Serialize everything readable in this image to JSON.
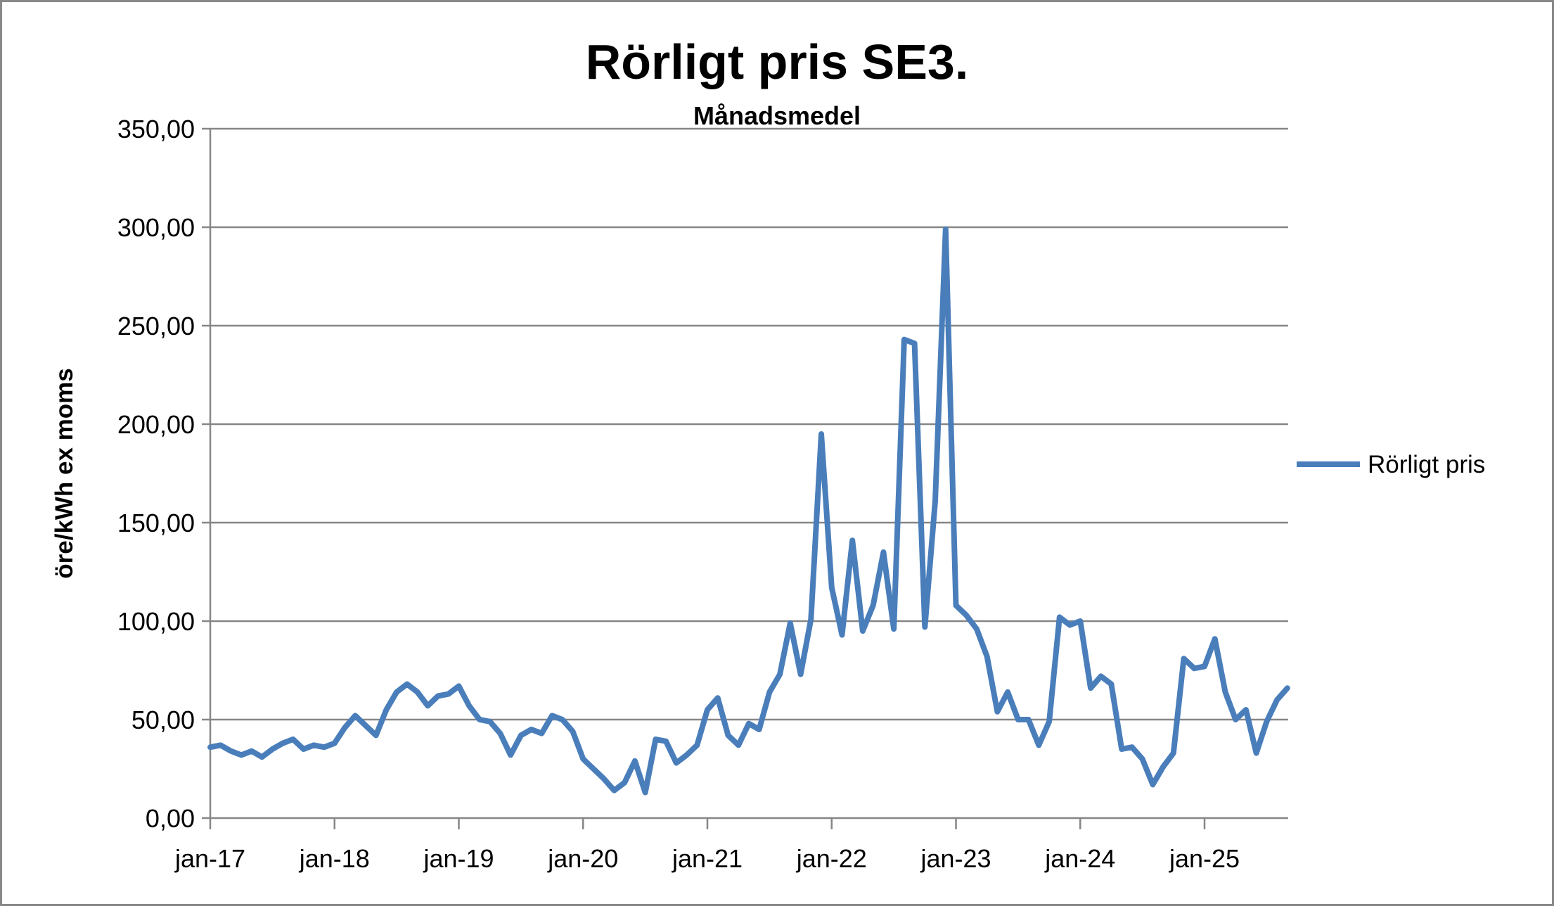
{
  "chart_data": {
    "type": "line",
    "title": "Rörligt pris SE3.",
    "subtitle": "Månadsmedel",
    "xlabel": "",
    "ylabel": "öre/kWh ex moms",
    "ylim": [
      0,
      350
    ],
    "y_ticks": [
      "0,00",
      "50,00",
      "100,00",
      "150,00",
      "200,00",
      "250,00",
      "300,00",
      "350,00"
    ],
    "x_tick_labels": [
      "jan-17",
      "jan-18",
      "jan-19",
      "jan-20",
      "jan-21",
      "jan-22",
      "jan-23",
      "jan-24",
      "jan-25"
    ],
    "x_start": "jan-17",
    "x_end": "sep-25",
    "grid": "horizontal",
    "legend": "right",
    "series": [
      {
        "name": "Rörligt pris",
        "color": "#4a7ebb",
        "values": [
          36,
          37,
          34,
          32,
          34,
          31,
          35,
          38,
          40,
          35,
          37,
          36,
          38,
          46,
          52,
          47,
          42,
          55,
          64,
          68,
          64,
          57,
          62,
          63,
          67,
          57,
          50,
          49,
          43,
          32,
          42,
          45,
          43,
          52,
          50,
          44,
          30,
          25,
          20,
          14,
          18,
          29,
          13,
          40,
          39,
          28,
          32,
          37,
          55,
          61,
          42,
          37,
          48,
          45,
          64,
          73,
          99,
          73,
          101,
          195,
          117,
          93,
          141,
          95,
          108,
          135,
          96,
          243,
          241,
          97,
          161,
          299,
          108,
          103,
          96,
          82,
          54,
          64,
          50,
          50,
          37,
          49,
          102,
          98,
          100,
          66,
          72,
          68,
          35,
          36,
          30,
          17,
          26,
          33,
          81,
          76,
          77,
          91,
          64,
          50,
          55,
          33,
          49,
          60,
          66
        ]
      }
    ]
  }
}
